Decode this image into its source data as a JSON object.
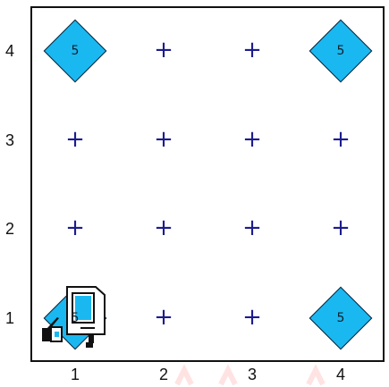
{
  "board": {
    "x_labels": [
      "1",
      "2",
      "3",
      "4"
    ],
    "y_labels": [
      "4",
      "3",
      "2",
      "1"
    ],
    "cells": [
      {
        "row": 4,
        "col": 1,
        "kind": "beeper",
        "count": "5"
      },
      {
        "row": 4,
        "col": 2,
        "kind": "empty",
        "marker": "+"
      },
      {
        "row": 4,
        "col": 3,
        "kind": "empty",
        "marker": "+"
      },
      {
        "row": 4,
        "col": 4,
        "kind": "beeper",
        "count": "5"
      },
      {
        "row": 3,
        "col": 1,
        "kind": "empty",
        "marker": "+"
      },
      {
        "row": 3,
        "col": 2,
        "kind": "empty",
        "marker": "+"
      },
      {
        "row": 3,
        "col": 3,
        "kind": "empty",
        "marker": "+"
      },
      {
        "row": 3,
        "col": 4,
        "kind": "empty",
        "marker": "+"
      },
      {
        "row": 2,
        "col": 1,
        "kind": "empty",
        "marker": "+"
      },
      {
        "row": 2,
        "col": 2,
        "kind": "empty",
        "marker": "+"
      },
      {
        "row": 2,
        "col": 3,
        "kind": "empty",
        "marker": "+"
      },
      {
        "row": 2,
        "col": 4,
        "kind": "empty",
        "marker": "+"
      },
      {
        "row": 1,
        "col": 1,
        "kind": "beeper",
        "count": "5"
      },
      {
        "row": 1,
        "col": 2,
        "kind": "empty",
        "marker": "+"
      },
      {
        "row": 1,
        "col": 3,
        "kind": "empty",
        "marker": "+"
      },
      {
        "row": 1,
        "col": 4,
        "kind": "beeper",
        "count": "5"
      }
    ]
  },
  "robot": {
    "row": 1,
    "col": 1,
    "icon": "karel-robot-icon"
  },
  "colors": {
    "beeper_fill": "#1ab8f0",
    "marker": "#1c1c8f",
    "border": "#111111",
    "robot_screen": "#1ab8f0"
  }
}
